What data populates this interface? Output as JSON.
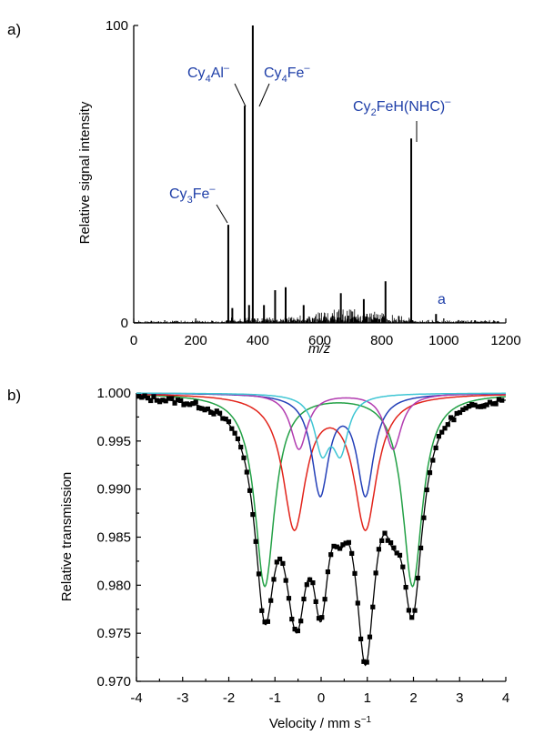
{
  "chart_data": [
    {
      "panel_label": "a)",
      "type": "bar",
      "xlabel": "m/z",
      "ylabel": "Relative signal intensity",
      "xlim": [
        0,
        1200
      ],
      "ylim": [
        0,
        100
      ],
      "xticks": [
        "0",
        "200",
        "400",
        "600",
        "800",
        "1000",
        "1200"
      ],
      "yticks": [
        "0",
        "100"
      ],
      "peaks": [
        {
          "x": 305,
          "y": 33
        },
        {
          "x": 358,
          "y": 73
        },
        {
          "x": 384,
          "y": 100
        },
        {
          "x": 895,
          "y": 62
        },
        {
          "x": 456,
          "y": 11
        },
        {
          "x": 490,
          "y": 12
        },
        {
          "x": 668,
          "y": 10
        },
        {
          "x": 742,
          "y": 8
        },
        {
          "x": 812,
          "y": 14
        },
        {
          "x": 318,
          "y": 5
        },
        {
          "x": 372,
          "y": 6
        },
        {
          "x": 420,
          "y": 6
        },
        {
          "x": 548,
          "y": 6
        },
        {
          "x": 975,
          "y": 3
        }
      ],
      "annotations": [
        {
          "text": "Cy",
          "sub": "4",
          "rest": "Al",
          "sup": "–",
          "points_to": 358
        },
        {
          "text": "Cy",
          "sub": "4",
          "rest": "Fe",
          "sup": "–",
          "points_to": 384
        },
        {
          "text": "Cy",
          "sub": "3",
          "rest": "Fe",
          "sup": "–",
          "points_to": 305
        },
        {
          "text": "Cy",
          "sub": "2",
          "rest": "FeH(NHC)",
          "sup": "–",
          "points_to": 895
        },
        {
          "text": "a",
          "sub": "",
          "rest": "",
          "sup": "",
          "points_to": 975
        }
      ]
    },
    {
      "panel_label": "b)",
      "type": "line",
      "xlabel": "Velocity / mm s",
      "xlabel_sup": "−1",
      "ylabel": "Relative transmission",
      "xlim": [
        -4,
        4
      ],
      "ylim": [
        0.97,
        1.0
      ],
      "xticks": [
        "-4",
        "-3",
        "-2",
        "-1",
        "0",
        "1",
        "2",
        "3",
        "4"
      ],
      "yticks": [
        "0.970",
        "0.975",
        "0.980",
        "0.985",
        "0.990",
        "0.995",
        "1.000"
      ],
      "series": [
        {
          "color": "#22a045",
          "lines": [
            [
              -1.22,
              0.02,
              0.26
            ],
            [
              1.98,
              0.02,
              0.26
            ]
          ]
        },
        {
          "color": "#e2231a",
          "lines": [
            [
              -0.58,
              0.0138,
              0.3
            ],
            [
              0.96,
              0.0138,
              0.3
            ]
          ]
        },
        {
          "color": "#2440b8",
          "lines": [
            [
              -0.02,
              0.0103,
              0.22
            ],
            [
              0.96,
              0.0103,
              0.22
            ]
          ]
        },
        {
          "color": "#b23cb0",
          "lines": [
            [
              -0.48,
              0.0058,
              0.22
            ],
            [
              1.56,
              0.0058,
              0.22
            ]
          ]
        },
        {
          "color": "#3fc6d4",
          "lines": [
            [
              0.02,
              0.0056,
              0.2
            ],
            [
              0.42,
              0.0056,
              0.2
            ]
          ]
        }
      ],
      "fit_color": "#000000",
      "data_color": "#000000"
    }
  ]
}
